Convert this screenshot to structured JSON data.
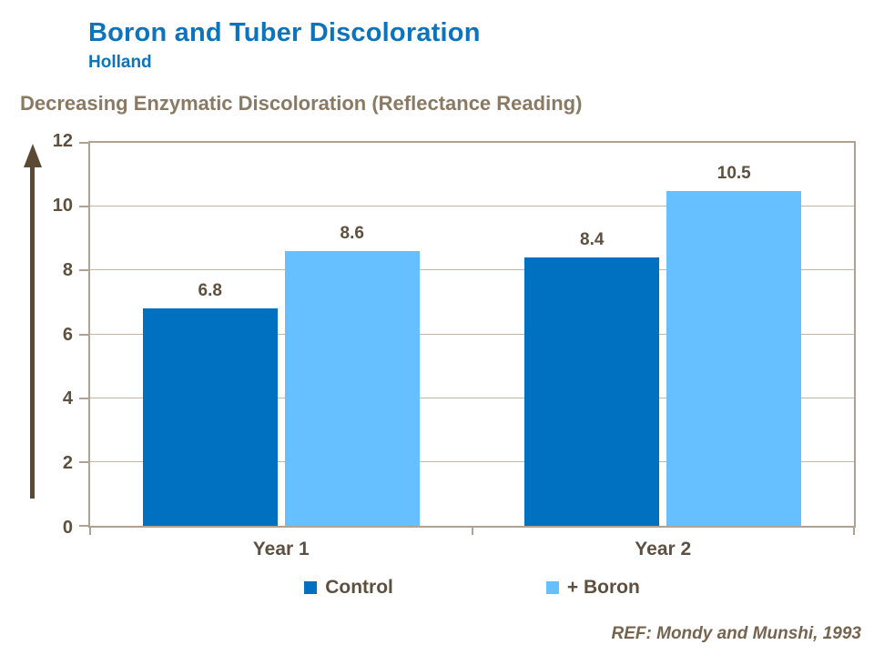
{
  "slide": {
    "title": "Boron and Tuber Discoloration",
    "subtitle": "Holland",
    "reference": "REF: Mondy and Munshi, 1993"
  },
  "colors": {
    "title_blue": "#0d74bc",
    "heading_brown": "#8a7963",
    "axis_text_brown": "#5e5040",
    "axis_line": "#afa293",
    "gridline": "#c2b6a6",
    "arrow": "#5a4a35",
    "reference_text": "#75644f",
    "control_bar": "#0070c0",
    "boron_bar": "#66bfff"
  },
  "chart_data": {
    "type": "bar",
    "title": "Decreasing Enzymatic Discoloration (Reflectance Reading)",
    "categories": [
      "Year 1",
      "Year 2"
    ],
    "series": [
      {
        "name": "Control",
        "color": "#0070c0",
        "values": [
          6.8,
          8.4
        ]
      },
      {
        "name": "+ Boron",
        "color": "#66bfff",
        "values": [
          8.6,
          10.5
        ]
      }
    ],
    "ylim": [
      0,
      12
    ],
    "yticks": [
      0,
      2,
      4,
      6,
      8,
      10,
      12
    ],
    "grid": true,
    "value_labels_shown": true,
    "legend_position": "bottom",
    "y_axis_arrow": "up"
  }
}
